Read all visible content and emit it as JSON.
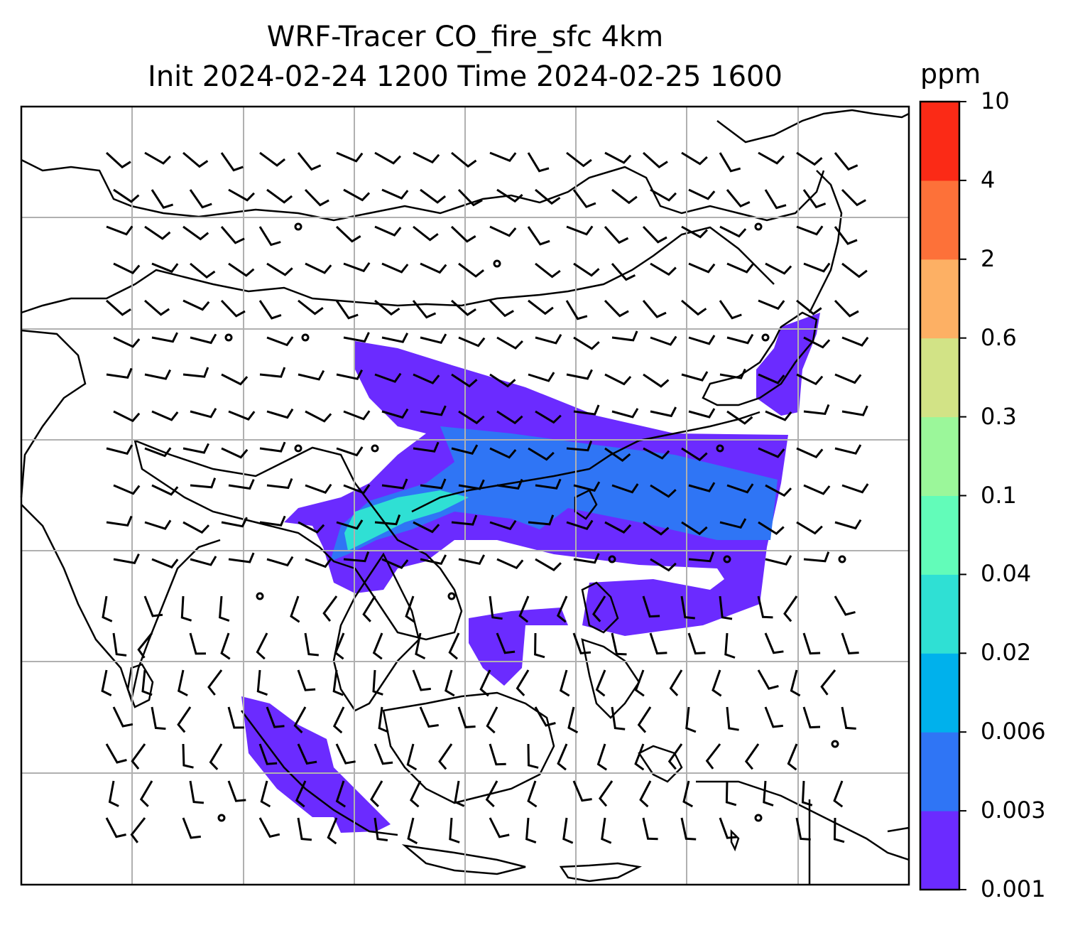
{
  "title": {
    "line1": "WRF-Tracer CO_fire_sfc 4km",
    "line2": "Init 2024-02-24 1200 Time 2024-02-25 1600"
  },
  "colorbar": {
    "unit": "ppm",
    "ticks": [
      "0.001",
      "0.003",
      "0.006",
      "0.02",
      "0.04",
      "0.1",
      "0.3",
      "0.6",
      "2",
      "4",
      "10"
    ],
    "colors": [
      "#6b2bff",
      "#2f75f5",
      "#00b1ec",
      "#2fe0d4",
      "#62fcb9",
      "#9bf79a",
      "#d2e386",
      "#fdb064",
      "#fd7139",
      "#fb2a16"
    ]
  },
  "map": {
    "grid_color": "#b0b0b0",
    "coastline_color": "#000000",
    "tracer_fill_levels": {
      "low": "#6b2bff",
      "mid": "#2f75f5",
      "high": "#2fe0d4"
    }
  }
}
